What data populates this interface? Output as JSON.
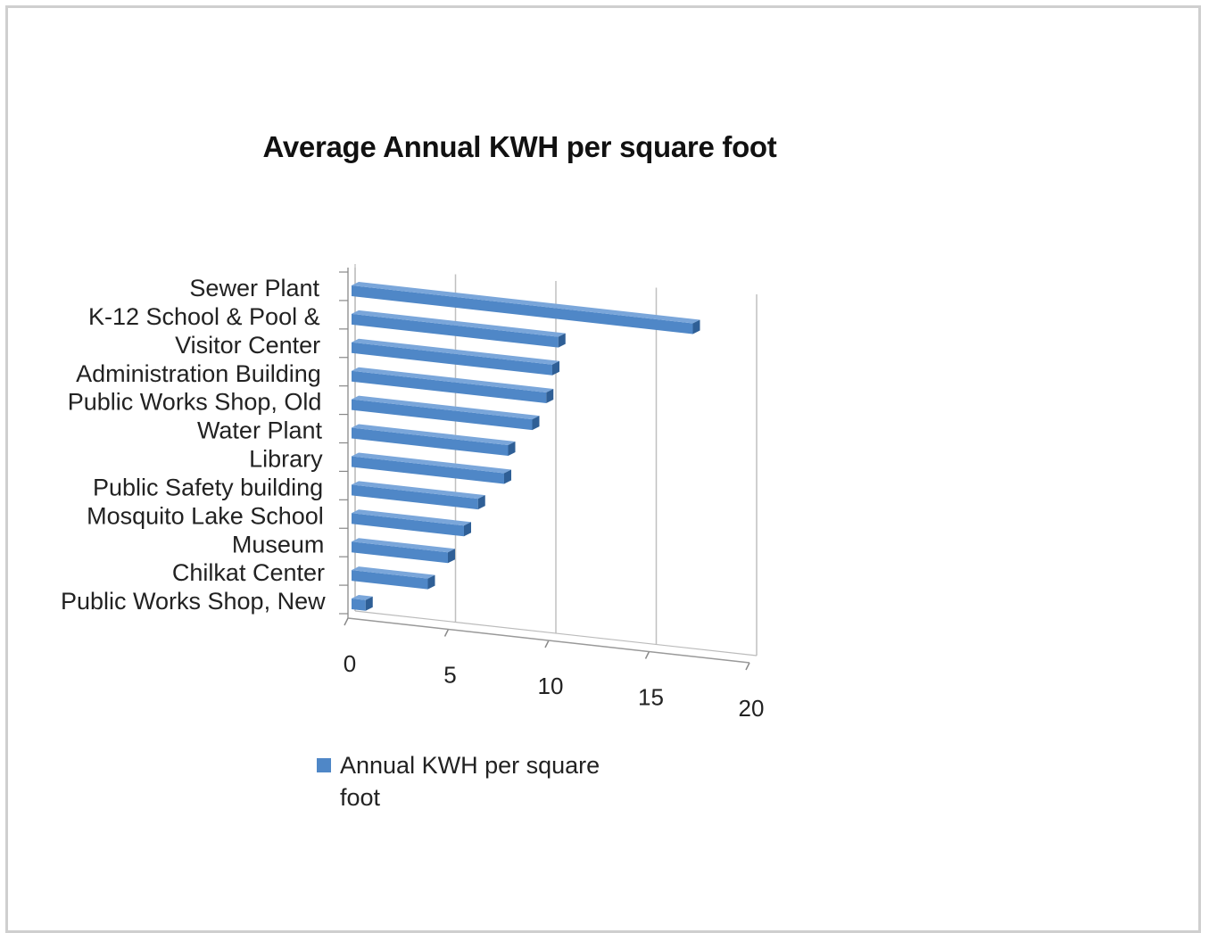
{
  "chart_data": {
    "type": "bar",
    "orientation": "horizontal",
    "style": "3d",
    "title": "Average Annual KWH per square foot",
    "categories": [
      "Sewer Plant",
      "K-12 School & Pool &",
      "Visitor Center",
      "Administration Building",
      "Public Works Shop, Old",
      "Water Plant",
      "Library",
      "Public Safety building",
      "Mosquito Lake School",
      "Museum",
      "Chilkat Center",
      "Public Works Shop, New"
    ],
    "series": [
      {
        "name": "Annual KWH per square foot",
        "values": [
          17,
          10.3,
          10,
          9.7,
          9,
          7.8,
          7.6,
          6.3,
          5.6,
          4.8,
          3.8,
          0.7
        ]
      }
    ],
    "xlim": [
      0,
      20
    ],
    "xticks": [
      "0",
      "5",
      "10",
      "15",
      "20"
    ],
    "grid": true,
    "legend_position": "bottom-left",
    "colors": {
      "bar": "#4f87c7",
      "bar_top": "#7aa6da",
      "bar_dark": "#2f5f96",
      "grid": "#c0c0c0"
    }
  }
}
